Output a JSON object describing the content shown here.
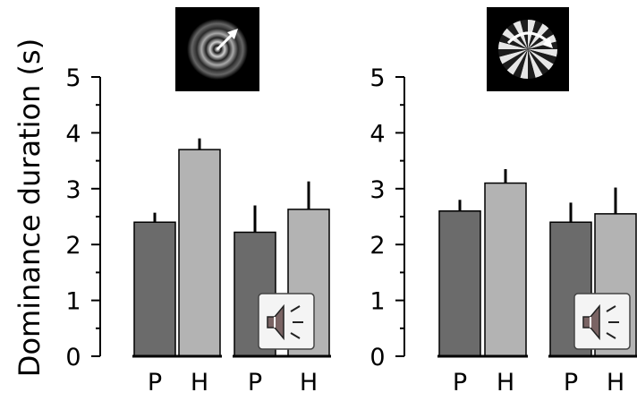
{
  "chart_data": [
    {
      "type": "bar",
      "ylabel": "Dominance duration (s)",
      "ylim": [
        0,
        5
      ],
      "yticks": [
        0,
        1,
        2,
        3,
        4,
        5
      ],
      "condition_icon": "expanding-concentric-rings-stimulus",
      "groups": [
        {
          "icon": "",
          "bars": [
            {
              "label": "P",
              "value": 2.4,
              "error": 0.17,
              "color": "#6b6b6b"
            },
            {
              "label": "H",
              "value": 3.7,
              "error": 0.2,
              "color": "#b3b3b3"
            }
          ]
        },
        {
          "icon": "speaker-icon",
          "bars": [
            {
              "label": "P",
              "value": 2.22,
              "error": 0.48,
              "color": "#6b6b6b"
            },
            {
              "label": "H",
              "value": 2.63,
              "error": 0.5,
              "color": "#b3b3b3"
            }
          ]
        }
      ]
    },
    {
      "type": "bar",
      "ylabel": "",
      "ylim": [
        0,
        5
      ],
      "yticks": [
        0,
        1,
        2,
        3,
        4,
        5
      ],
      "condition_icon": "rotating-radial-grating-stimulus",
      "groups": [
        {
          "icon": "",
          "bars": [
            {
              "label": "P",
              "value": 2.6,
              "error": 0.2,
              "color": "#6b6b6b"
            },
            {
              "label": "H",
              "value": 3.1,
              "error": 0.25,
              "color": "#b3b3b3"
            }
          ]
        },
        {
          "icon": "speaker-icon",
          "bars": [
            {
              "label": "P",
              "value": 2.4,
              "error": 0.35,
              "color": "#6b6b6b"
            },
            {
              "label": "H",
              "value": 2.55,
              "error": 0.47,
              "color": "#b3b3b3"
            }
          ]
        }
      ]
    }
  ]
}
